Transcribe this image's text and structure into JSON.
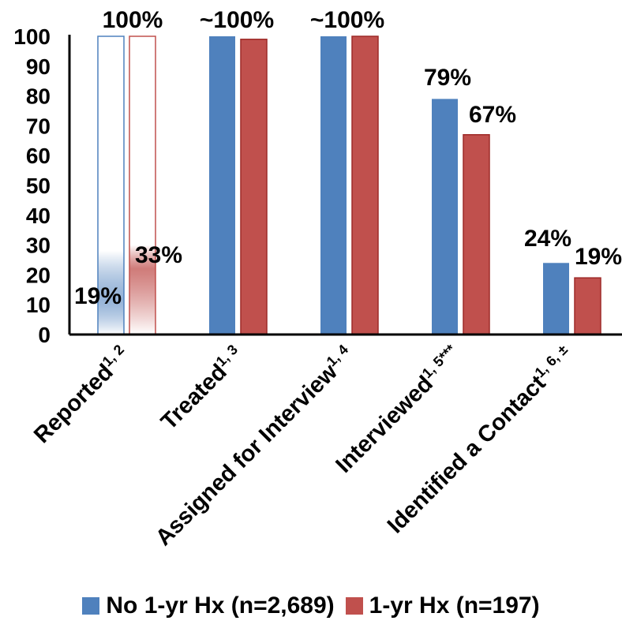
{
  "chart_data": {
    "type": "bar",
    "categories": [
      {
        "label": "Reported",
        "sup": "1, 2"
      },
      {
        "label": "Treated",
        "sup": "1, 3"
      },
      {
        "label": "Assigned for Interview",
        "sup": "1, 4"
      },
      {
        "label": "Interviewed",
        "sup": "1, 5***"
      },
      {
        "label": "Identified a Contact",
        "sup": "1, 6, ±"
      }
    ],
    "series": [
      {
        "name": "No 1-yr Hx (n=2,689)",
        "color": "#4F81BD",
        "values": [
          100,
          100,
          100,
          79,
          24
        ]
      },
      {
        "name": "1-yr Hx (n=197)",
        "color": "#C0504D",
        "values": [
          100,
          99,
          100,
          67,
          19
        ]
      }
    ],
    "labels_text": [
      [
        "100%",
        "~100%",
        "~100%",
        "79%",
        "24%"
      ],
      [
        "",
        "",
        "",
        "67%",
        "19%"
      ]
    ],
    "inner_labels": [
      "19%",
      "33%"
    ],
    "ylim": [
      0,
      100
    ],
    "yticks": [
      0,
      10,
      20,
      30,
      40,
      50,
      60,
      70,
      80,
      90,
      100
    ],
    "legend": "bottom"
  }
}
